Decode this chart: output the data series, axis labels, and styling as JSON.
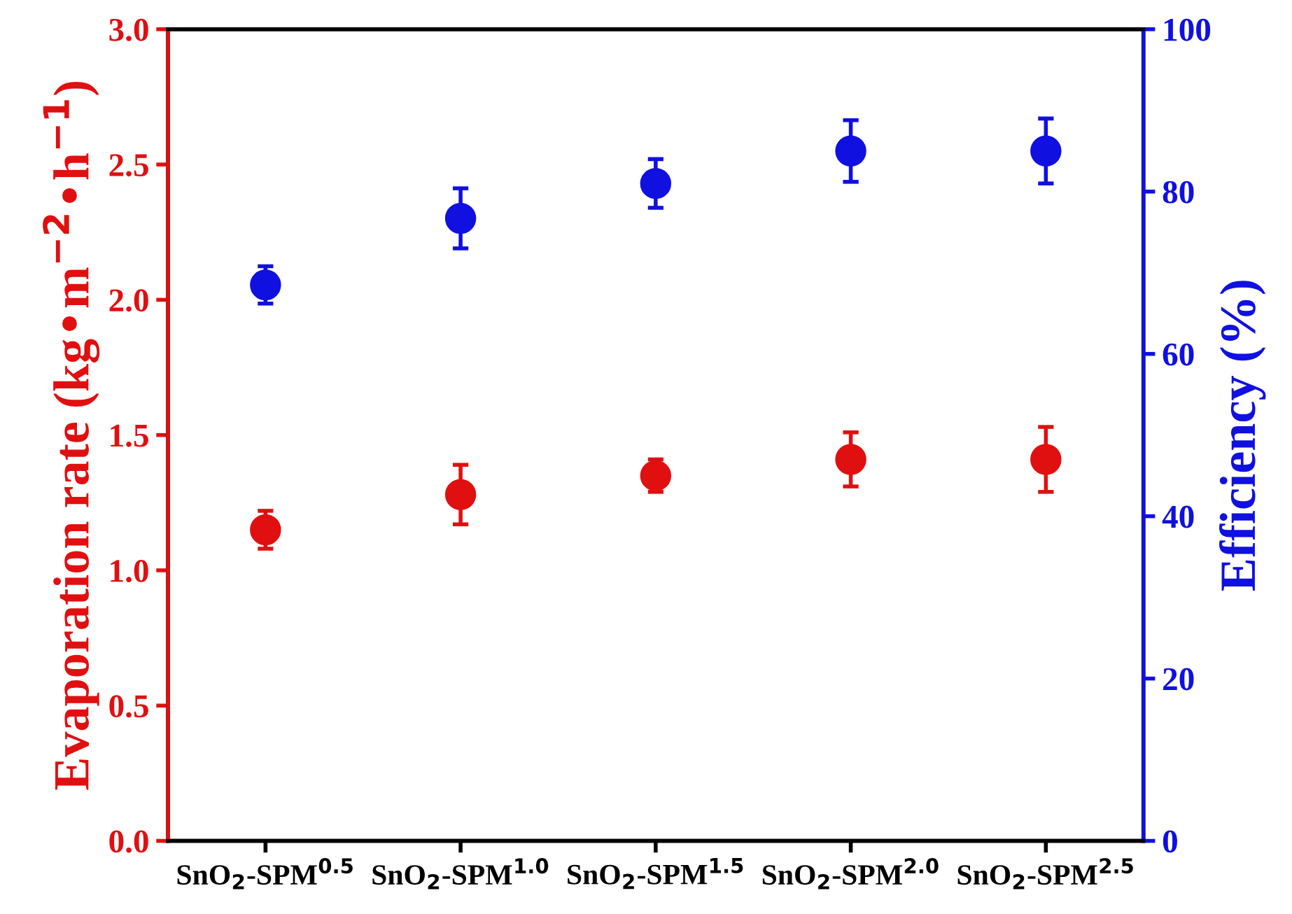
{
  "chart_data": {
    "type": "scatter",
    "categories": [
      "SnO$_{2}$-SPM$^{0.5}$",
      "SnO$_{2}$-SPM$^{1.0}$",
      "SnO$_{2}$-SPM$^{1.5}$",
      "SnO$_{2}$-SPM$^{2.0}$",
      "SnO$_{2}$-SPM$^{2.5}$"
    ],
    "ylabel": "Evaporation rate (kg•m$^{−2}$•h$^{−1}$)",
    "y2label": "Efficiency (%)",
    "series": [
      {
        "color": "#e01010",
        "values": [
          1.15,
          1.28,
          1.35,
          1.41,
          1.41
        ],
        "errors": [
          0.07,
          0.11,
          0.06,
          0.1,
          0.12
        ]
      },
      {
        "color": "#1010e0",
        "axis": "y2",
        "values": [
          68.5,
          76.7,
          81,
          85,
          85
        ],
        "errors": [
          2.3,
          3.7,
          3,
          3.8,
          4
        ]
      }
    ],
    "ylim": [
      0,
      3.0
    ],
    "yticks": [
      {
        "value": 0,
        "label": "0.0"
      },
      {
        "value": 0.5,
        "label": "0.5"
      },
      {
        "value": 1,
        "label": "1.0"
      },
      {
        "value": 1.5,
        "label": "1.5"
      },
      {
        "value": 2,
        "label": "2.0"
      },
      {
        "value": 2.5,
        "label": "2.5"
      },
      {
        "value": 3,
        "label": "3.0"
      }
    ],
    "y2lim": [
      0,
      100
    ],
    "y2ticks": [
      0,
      20,
      40,
      60,
      80,
      100
    ],
    "marker": "circle",
    "grid": false
  }
}
